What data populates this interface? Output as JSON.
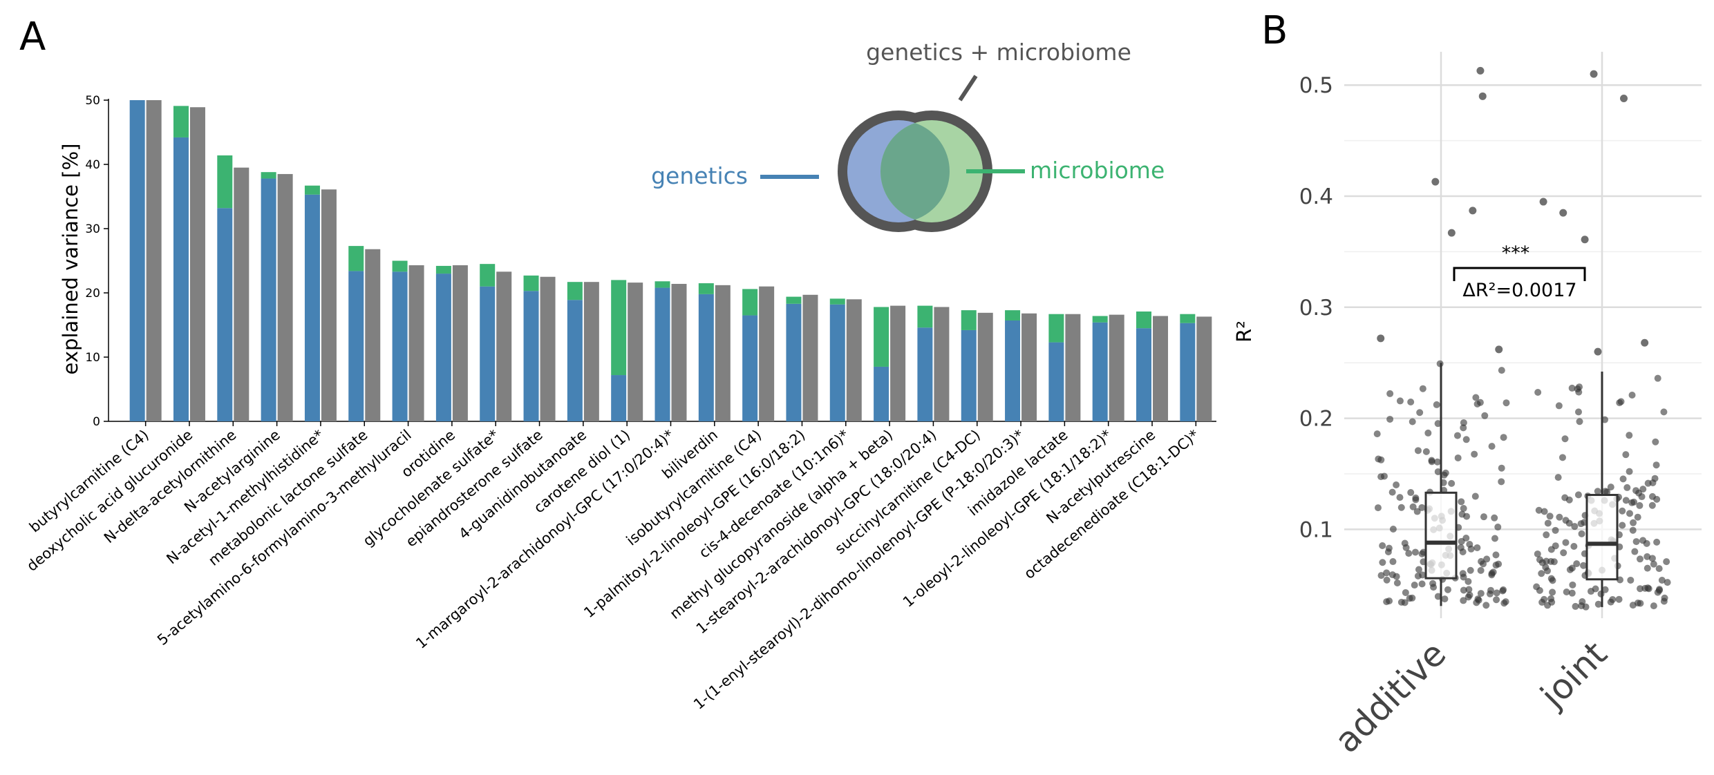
{
  "panels": {
    "a": "A",
    "b": "B"
  },
  "colors": {
    "genetics": "#4682b4",
    "microbiome": "#3cb371",
    "joint": "#808080",
    "legend_genetics_fill": "#8fa8d6",
    "legend_microbiome_fill": "#a8d4a4",
    "legend_overlap": "#6aa68c",
    "legend_ring": "#555555",
    "point": "#333333"
  },
  "legend": {
    "genetics": "genetics",
    "microbiome": "microbiome",
    "joint": "genetics + microbiome"
  },
  "chart_data": [
    {
      "type": "bar",
      "ylabel": "explained variance [%]",
      "ylim": [
        0,
        50
      ],
      "yticks": [
        0,
        10,
        20,
        30,
        40,
        50
      ],
      "stacked_pair": true,
      "categories": [
        "butyrylcarnitine (C4)",
        "deoxycholic acid glucuronide",
        "N-delta-acetylornithine",
        "N-acetylarginine",
        "N-acetyl-1-methylhistidine*",
        "metabolonic lactone sulfate",
        "5-acetylamino-6-formylamino-3-methyluracil",
        "orotidine",
        "glycocholenate sulfate*",
        "epiandrosterone sulfate",
        "4-guanidinobutanoate",
        "carotene diol (1)",
        "1-margaroyl-2-arachidonoyl-GPC (17:0/20:4)*",
        "biliverdin",
        "isobutyrylcarnitine (C4)",
        "1-palmitoyl-2-linoleoyl-GPE (16:0/18:2)",
        "cis-4-decenoate (10:1n6)*",
        "methyl glucopyranoside (alpha + beta)",
        "1-stearoyl-2-arachidonoyl-GPC (18:0/20:4)",
        "succinylcarnitine (C4-DC)",
        "1-(1-enyl-stearoyl)-2-dihomo-linolenoyl-GPE (P-18:0/20:3)*",
        "imidazole lactate",
        "1-oleoyl-2-linoleoyl-GPE (18:1/18:2)*",
        "N-acetylputrescine",
        "octadecenedioate (C18:1-DC)*"
      ],
      "series": [
        {
          "name": "genetics",
          "values": [
            50,
            44.2,
            33.2,
            37.8,
            35.3,
            23.4,
            23.3,
            23.0,
            21.0,
            20.3,
            18.9,
            7.2,
            20.8,
            19.8,
            16.5,
            18.3,
            18.2,
            8.5,
            14.6,
            14.2,
            15.7,
            12.3,
            15.4,
            14.5,
            15.3
          ]
        },
        {
          "name": "microbiome",
          "values": [
            0,
            4.9,
            8.2,
            1.0,
            1.4,
            3.9,
            1.7,
            1.2,
            3.5,
            2.4,
            2.8,
            14.8,
            1.0,
            1.7,
            4.1,
            1.1,
            0.9,
            9.3,
            3.4,
            3.1,
            1.6,
            4.4,
            1.0,
            2.6,
            1.4
          ]
        },
        {
          "name": "genetics + microbiome",
          "values": [
            50,
            48.9,
            39.5,
            38.5,
            36.1,
            26.8,
            24.3,
            24.3,
            23.3,
            22.5,
            21.7,
            21.6,
            21.4,
            21.2,
            21.0,
            19.7,
            19.0,
            18.0,
            17.8,
            16.9,
            16.8,
            16.7,
            16.6,
            16.4,
            16.3
          ]
        }
      ]
    },
    {
      "type": "box",
      "ylabel": "R²",
      "ylim": [
        0.02,
        0.53
      ],
      "yticks": [
        0.1,
        0.2,
        0.3,
        0.4,
        0.5
      ],
      "categories": [
        "additive",
        "joint"
      ],
      "boxes": [
        {
          "name": "additive",
          "q1": 0.056,
          "median": 0.088,
          "q3": 0.133,
          "whisker_low": 0.031,
          "whisker_high": 0.25
        },
        {
          "name": "joint",
          "q1": 0.055,
          "median": 0.087,
          "q3": 0.131,
          "whisker_low": 0.03,
          "whisker_high": 0.242
        }
      ],
      "outliers": {
        "additive": [
          0.513,
          0.49,
          0.413,
          0.387,
          0.367,
          0.272,
          0.262
        ],
        "joint": [
          0.51,
          0.488,
          0.395,
          0.385,
          0.361,
          0.268,
          0.26
        ]
      },
      "annotation": {
        "stars": "***",
        "delta": "ΔR²=0.0017"
      }
    }
  ]
}
